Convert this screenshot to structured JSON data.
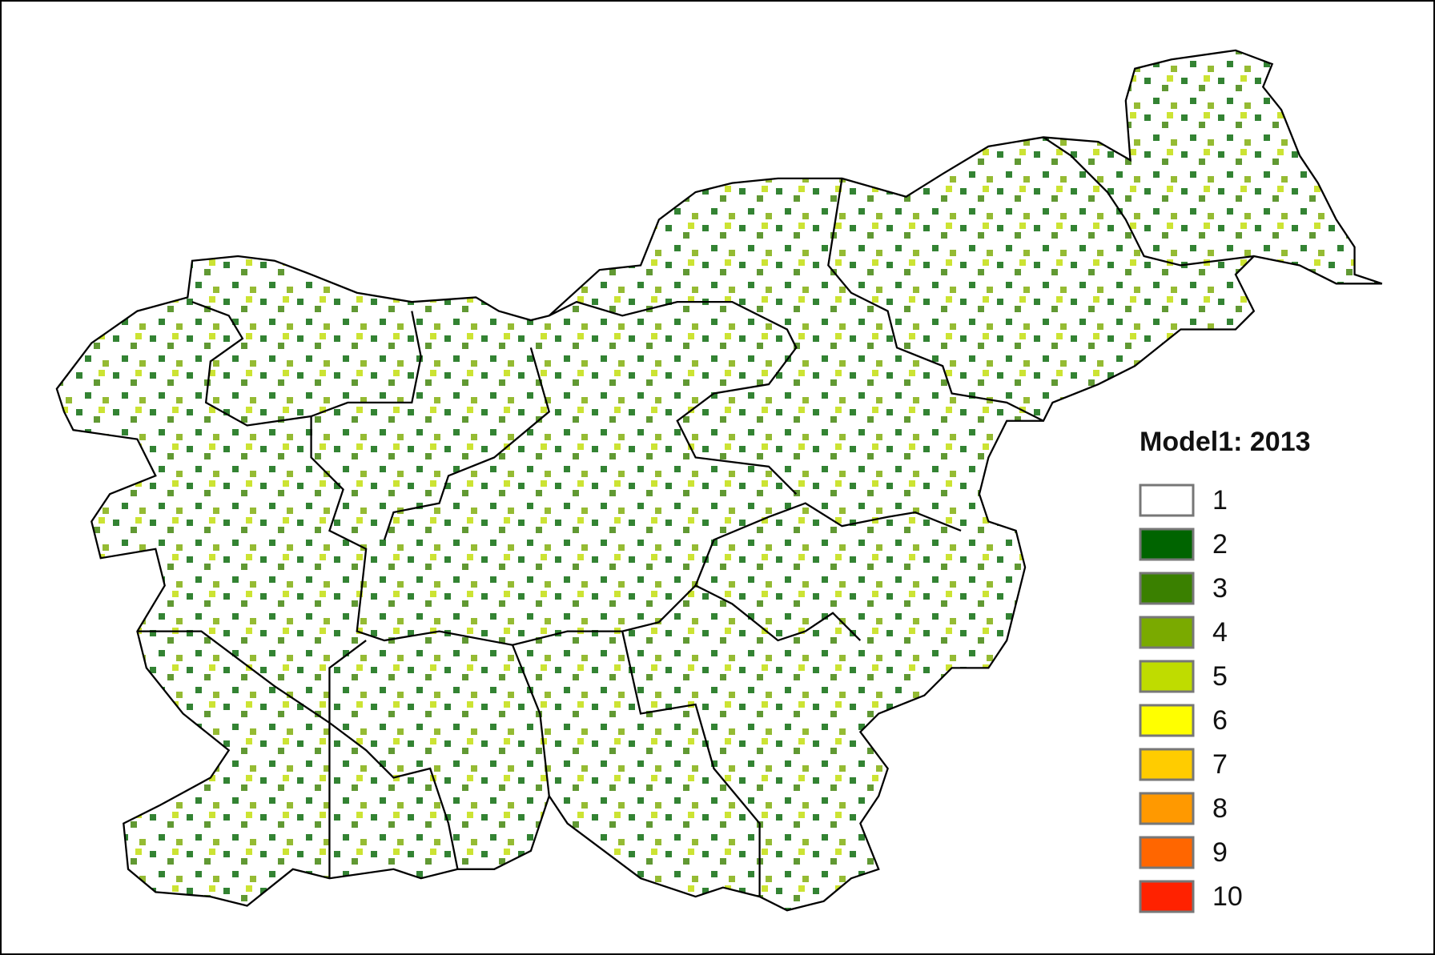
{
  "legend": {
    "title": "Model1: 2013",
    "classes": [
      {
        "label": "1",
        "color": "#ffffff"
      },
      {
        "label": "2",
        "color": "#006400"
      },
      {
        "label": "3",
        "color": "#3a8000"
      },
      {
        "label": "4",
        "color": "#7aaa00"
      },
      {
        "label": "5",
        "color": "#bfdc00"
      },
      {
        "label": "6",
        "color": "#ffff00"
      },
      {
        "label": "7",
        "color": "#ffcc00"
      },
      {
        "label": "8",
        "color": "#ff9900"
      },
      {
        "label": "9",
        "color": "#ff6600"
      },
      {
        "label": "10",
        "color": "#ff2200"
      }
    ]
  }
}
